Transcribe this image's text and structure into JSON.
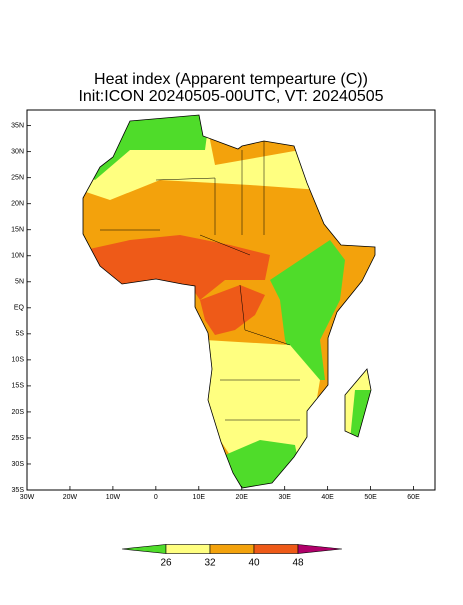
{
  "map": {
    "title": "Heat index (Apparent tempearture (C))",
    "subtitle": "Init:ICON 20240505-00UTC, VT: 20240505",
    "lonlim": [
      -30,
      65
    ],
    "latlim": [
      -35,
      38
    ],
    "lonticks": [
      {
        "value": -30,
        "label": "30W"
      },
      {
        "value": -20,
        "label": "20W"
      },
      {
        "value": -10,
        "label": "10W"
      },
      0,
      {
        "value": 10,
        "label": "10E"
      },
      {
        "value": 20,
        "label": "20E"
      },
      {
        "value": 30,
        "label": "30E"
      },
      {
        "value": 40,
        "label": "40E"
      },
      {
        "value": 50,
        "label": "50E"
      },
      {
        "value": 60,
        "label": "60E"
      }
    ],
    "latticks": [
      {
        "value": 35,
        "label": "35N"
      },
      {
        "value": 30,
        "label": "30N"
      },
      {
        "value": 25,
        "label": "25N"
      },
      {
        "value": 20,
        "label": "20N"
      },
      {
        "value": 15,
        "label": "15N"
      },
      {
        "value": 10,
        "label": "10N"
      },
      {
        "value": 5,
        "label": "5N"
      },
      {
        "value": 0,
        "label": "EQ"
      },
      {
        "value": -5,
        "label": "5S"
      },
      {
        "value": -10,
        "label": "10S"
      },
      {
        "value": -15,
        "label": "15S"
      },
      {
        "value": -20,
        "label": "20S"
      },
      {
        "value": -25,
        "label": "25S"
      },
      {
        "value": -30,
        "label": "30S"
      },
      {
        "value": -35,
        "label": "35S"
      }
    ],
    "colorbar": {
      "levels": [
        26,
        32,
        40,
        48
      ],
      "colors": [
        "#4fdc2a",
        "#ffff80",
        "#f3a20c",
        "#ee5a18",
        "#b0006a"
      ]
    }
  }
}
